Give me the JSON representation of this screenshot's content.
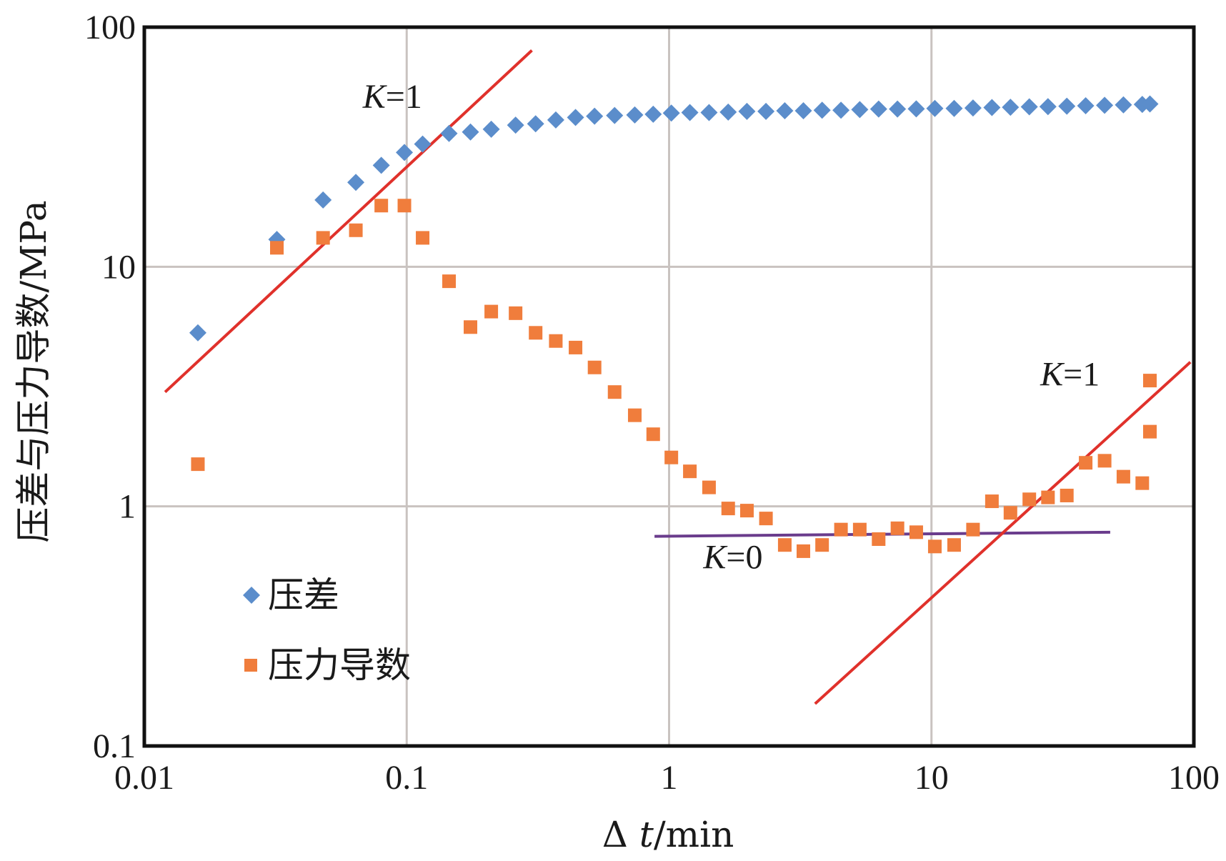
{
  "chart_data": {
    "type": "scatter",
    "xscale": "log",
    "yscale": "log",
    "xlim": [
      0.01,
      100
    ],
    "ylim": [
      0.1,
      100
    ],
    "grid": true,
    "legend_position": "bottom-left",
    "xlabel": "Δ t/min",
    "xlabel_prefix": "Δ ",
    "xlabel_var": "t",
    "xlabel_unit": "/min",
    "ylabel": "压差与压力导数/MPa",
    "xticks": [
      {
        "value": 0.01,
        "label": "0.01"
      },
      {
        "value": 0.1,
        "label": "0.1"
      },
      {
        "value": 1,
        "label": "1"
      },
      {
        "value": 10,
        "label": "10"
      },
      {
        "value": 100,
        "label": "100"
      }
    ],
    "yticks": [
      {
        "value": 0.1,
        "label": "0.1"
      },
      {
        "value": 1,
        "label": "1"
      },
      {
        "value": 10,
        "label": "10"
      },
      {
        "value": 100,
        "label": "100"
      }
    ],
    "series": [
      {
        "name": "压差",
        "marker": "diamond",
        "color": "#5b8dcb",
        "x": [
          0.016,
          0.032,
          0.048,
          0.064,
          0.08,
          0.098,
          0.115,
          0.145,
          0.175,
          0.21,
          0.26,
          0.31,
          0.37,
          0.44,
          0.52,
          0.62,
          0.74,
          0.87,
          1.02,
          1.2,
          1.42,
          1.68,
          1.98,
          2.34,
          2.76,
          3.25,
          3.83,
          4.52,
          5.33,
          6.29,
          7.42,
          8.75,
          10.3,
          12.2,
          14.4,
          17.0,
          20.0,
          23.6,
          27.8,
          32.8,
          38.7,
          45.7,
          53.9,
          63.6,
          68.0
        ],
        "y": [
          5.3,
          13.0,
          19.0,
          22.5,
          26.5,
          30.0,
          32.5,
          36.0,
          36.5,
          37.5,
          39.0,
          39.5,
          41.0,
          42.0,
          42.5,
          42.8,
          43.0,
          43.3,
          43.8,
          44.0,
          44.0,
          44.2,
          44.5,
          44.5,
          44.8,
          44.8,
          45.0,
          45.0,
          45.3,
          45.5,
          45.5,
          45.6,
          45.8,
          45.8,
          46.0,
          46.2,
          46.3,
          46.5,
          46.6,
          46.8,
          47.0,
          47.2,
          47.4,
          47.6,
          47.8
        ]
      },
      {
        "name": "压力导数",
        "marker": "square",
        "color": "#f07d3c",
        "x": [
          0.016,
          0.032,
          0.048,
          0.064,
          0.08,
          0.098,
          0.115,
          0.145,
          0.175,
          0.21,
          0.26,
          0.31,
          0.37,
          0.44,
          0.52,
          0.62,
          0.74,
          0.87,
          1.02,
          1.2,
          1.42,
          1.68,
          1.98,
          2.34,
          2.76,
          3.25,
          3.83,
          4.52,
          5.33,
          6.29,
          7.42,
          8.75,
          10.3,
          12.2,
          14.4,
          17.0,
          20.0,
          23.6,
          27.8,
          32.8,
          38.7,
          45.7,
          53.9,
          63.6,
          68.0
        ],
        "y": [
          1.5,
          12.0,
          13.2,
          14.2,
          18.0,
          18.0,
          13.2,
          8.7,
          5.6,
          6.5,
          6.4,
          5.3,
          4.9,
          4.6,
          3.8,
          3.0,
          2.4,
          2.0,
          1.6,
          1.4,
          1.2,
          0.98,
          0.96,
          0.89,
          0.69,
          0.65,
          0.69,
          0.8,
          0.8,
          0.73,
          0.81,
          0.78,
          0.68,
          0.69,
          0.8,
          1.05,
          0.94,
          1.07,
          1.09,
          1.11,
          1.52,
          1.55,
          1.33,
          1.25,
          2.05
        ]
      }
    ],
    "extra_point": {
      "series": "压力导数",
      "x": 68.0,
      "y": 3.35
    },
    "reference_lines": [
      {
        "id": "k1-early",
        "color": "#e0312b",
        "from": {
          "x": 0.012,
          "y": 3.0
        },
        "to": {
          "x": 0.3,
          "y": 80.0
        }
      },
      {
        "id": "k0",
        "color": "#6a3c8c",
        "from": {
          "x": 0.88,
          "y": 0.75
        },
        "to": {
          "x": 48.0,
          "y": 0.78
        }
      },
      {
        "id": "k1-late",
        "color": "#e0312b",
        "from": {
          "x": 3.6,
          "y": 0.15
        },
        "to": {
          "x": 97.0,
          "y": 4.0
        }
      }
    ],
    "annotations": [
      {
        "id": "k1-early",
        "var": "K",
        "rest": "=1",
        "x": 0.068,
        "y": 46.0
      },
      {
        "id": "k0",
        "var": "K",
        "rest": "=0",
        "x": 1.35,
        "y": 0.55
      },
      {
        "id": "k1-late",
        "var": "K",
        "rest": "=1",
        "x": 26.0,
        "y": 3.2
      }
    ]
  }
}
